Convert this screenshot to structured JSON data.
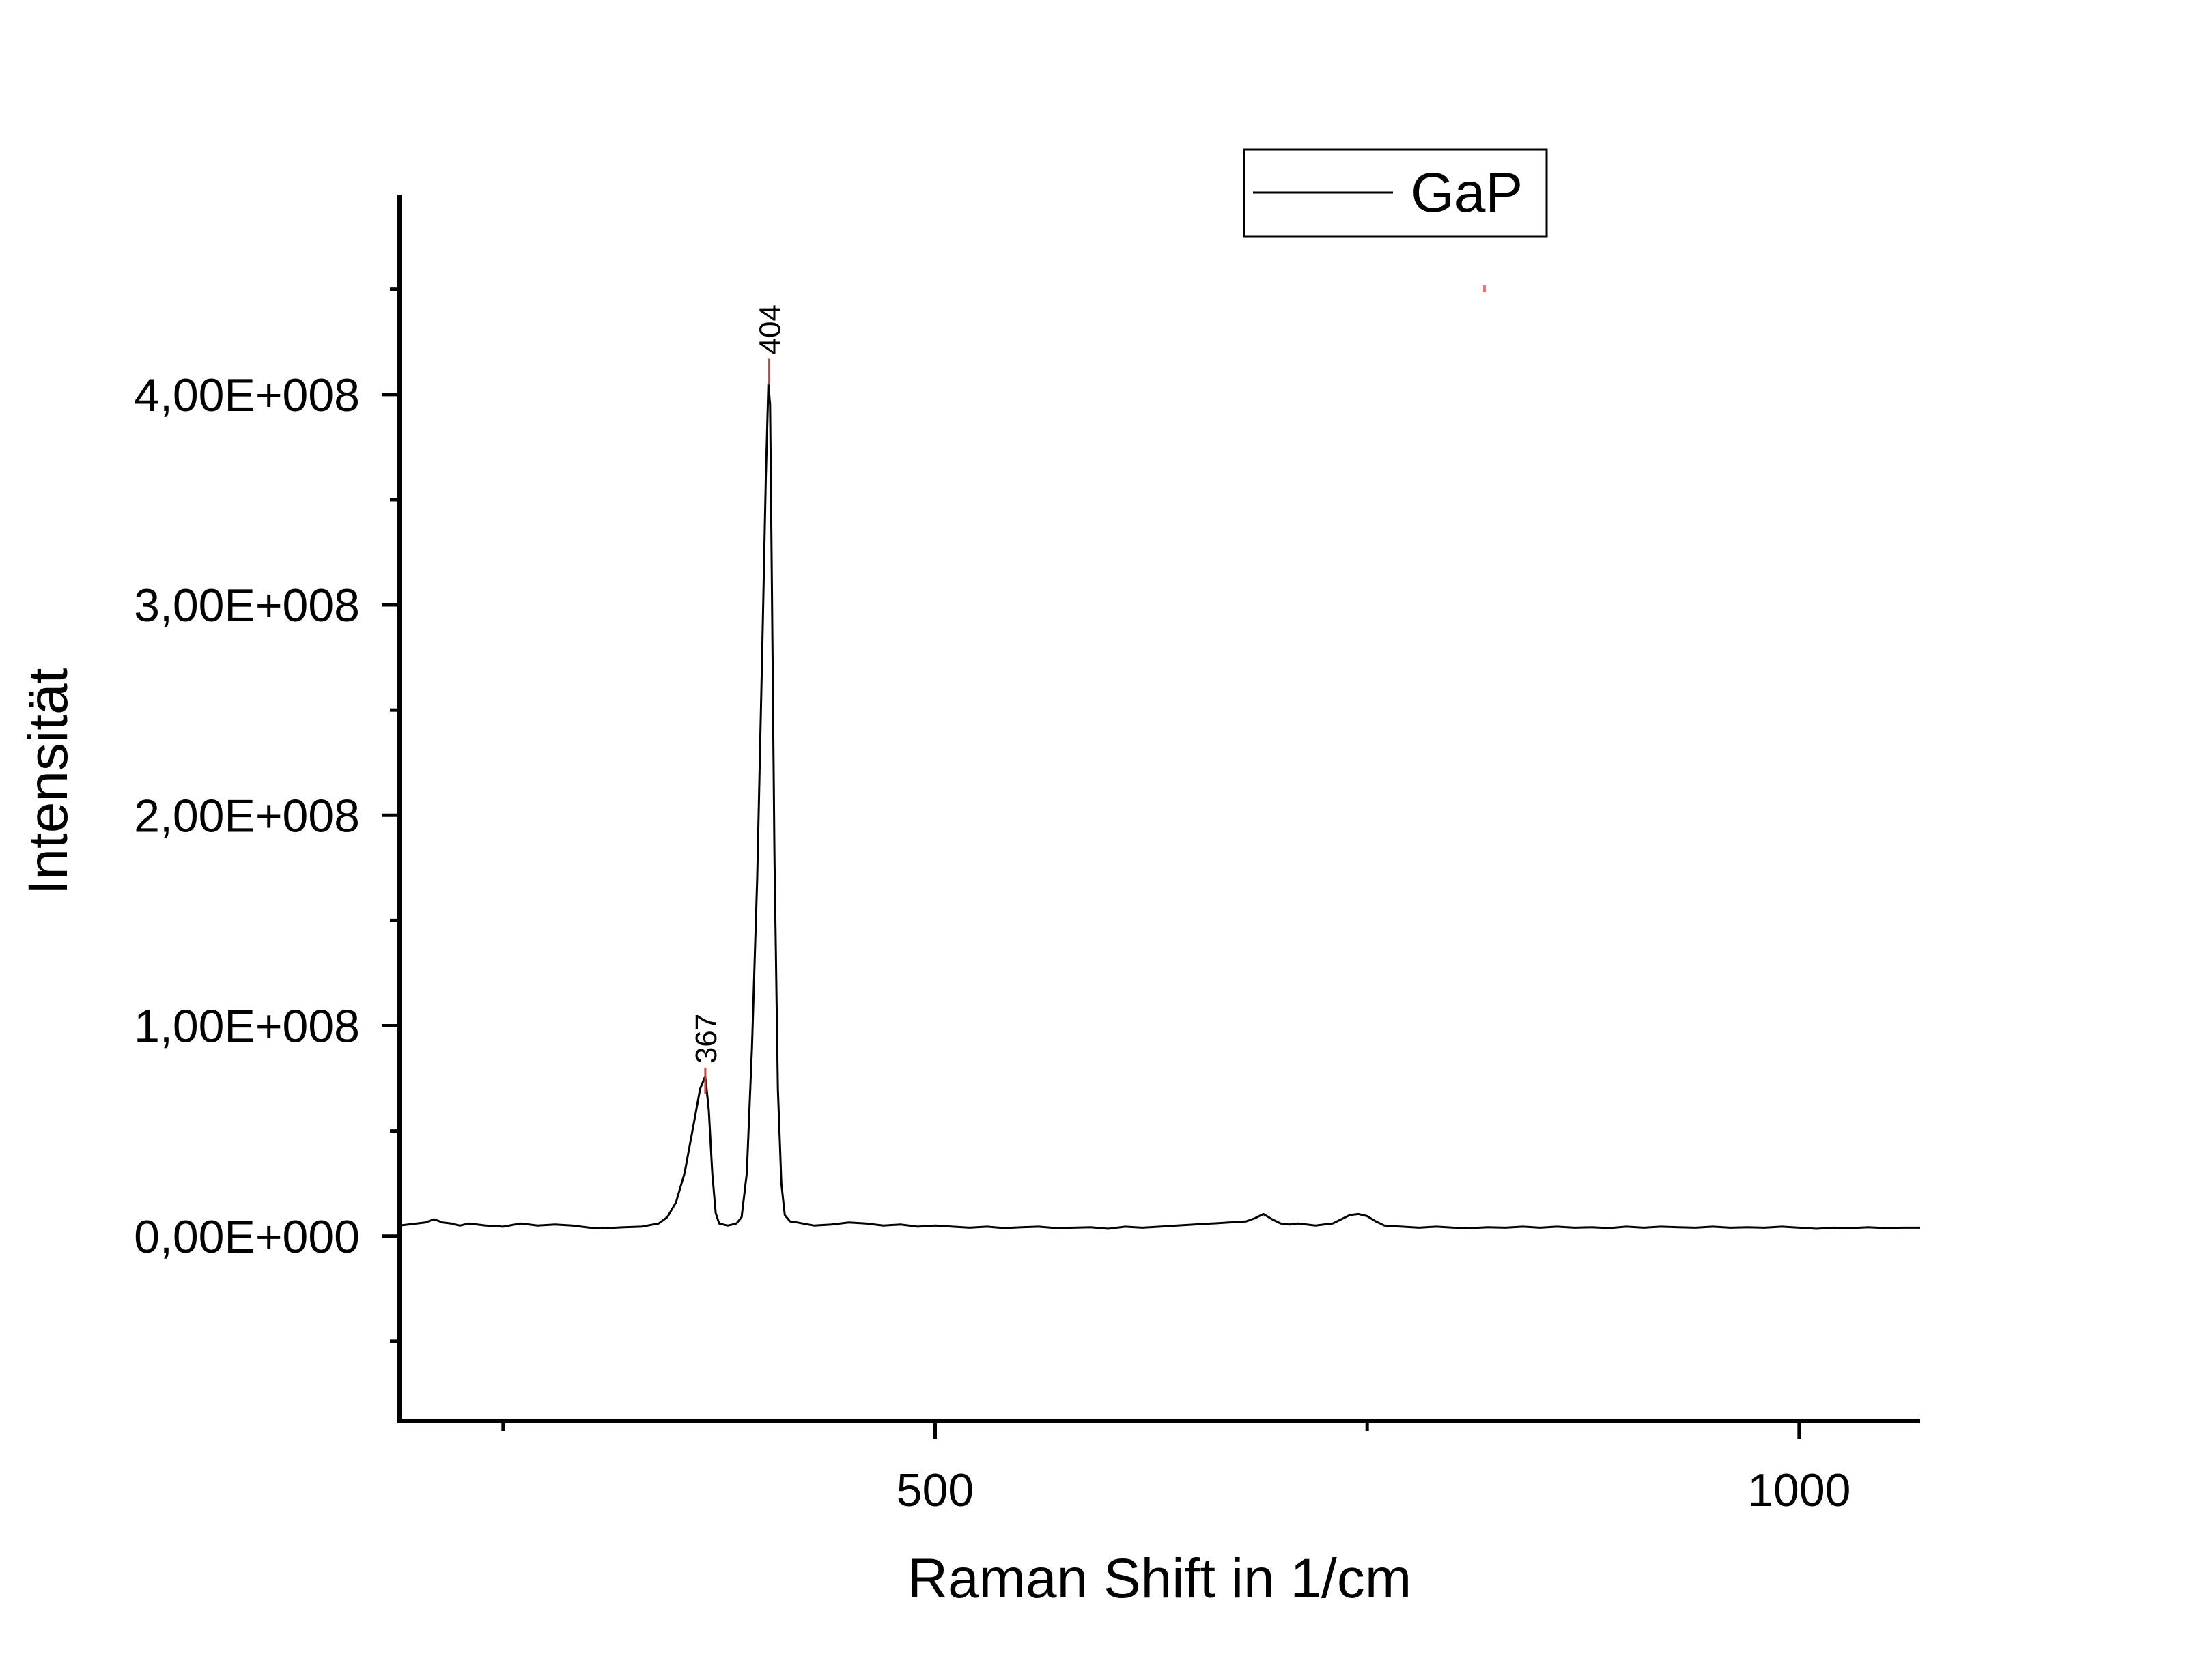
{
  "chart_data": {
    "type": "line",
    "xlabel": "Raman Shift in 1/cm",
    "ylabel": "Intensität",
    "xlim": [
      190,
      1070
    ],
    "ylim": [
      -88000000,
      495000000
    ],
    "x_ticks": [
      {
        "value": 500,
        "label": "500"
      },
      {
        "value": 1000,
        "label": "1000"
      }
    ],
    "x_minor_ticks": [
      250,
      750
    ],
    "y_ticks": [
      {
        "value": 0,
        "label": "0,00E+000"
      },
      {
        "value": 100000000,
        "label": "1,00E+008"
      },
      {
        "value": 200000000,
        "label": "2,00E+008"
      },
      {
        "value": 300000000,
        "label": "3,00E+008"
      },
      {
        "value": 400000000,
        "label": "4,00E+008"
      }
    ],
    "y_minor_ticks": [
      -50000000,
      50000000,
      150000000,
      250000000,
      350000000,
      450000000
    ],
    "legend": {
      "position": "top-center",
      "entries": [
        "GaP"
      ]
    },
    "annotations": [
      {
        "label": "367",
        "x": 367,
        "y": 80000000,
        "marker_color": "#e8332a"
      },
      {
        "label": "404",
        "x": 404,
        "y": 417000000,
        "marker_color": "#e8332a"
      }
    ],
    "series": [
      {
        "name": "GaP",
        "color": "#000000",
        "points": [
          [
            190,
            5000000
          ],
          [
            195,
            5500000
          ],
          [
            200,
            6000000
          ],
          [
            205,
            6500000
          ],
          [
            210,
            8000000
          ],
          [
            215,
            6500000
          ],
          [
            220,
            6000000
          ],
          [
            225,
            5000000
          ],
          [
            230,
            6000000
          ],
          [
            240,
            5000000
          ],
          [
            250,
            4500000
          ],
          [
            260,
            6000000
          ],
          [
            270,
            5000000
          ],
          [
            280,
            5500000
          ],
          [
            290,
            5000000
          ],
          [
            300,
            4000000
          ],
          [
            310,
            3800000
          ],
          [
            320,
            4200000
          ],
          [
            330,
            4500000
          ],
          [
            340,
            6000000
          ],
          [
            345,
            9000000
          ],
          [
            350,
            16000000
          ],
          [
            355,
            30000000
          ],
          [
            360,
            52000000
          ],
          [
            364,
            70000000
          ],
          [
            367,
            76000000
          ],
          [
            369,
            60000000
          ],
          [
            371,
            30000000
          ],
          [
            373,
            11000000
          ],
          [
            375,
            6000000
          ],
          [
            380,
            5000000
          ],
          [
            385,
            6000000
          ],
          [
            388,
            9000000
          ],
          [
            391,
            30000000
          ],
          [
            394,
            90000000
          ],
          [
            397,
            170000000
          ],
          [
            400,
            280000000
          ],
          [
            402,
            360000000
          ],
          [
            403.5,
            405000000
          ],
          [
            404.5,
            395000000
          ],
          [
            405.5,
            310000000
          ],
          [
            407,
            180000000
          ],
          [
            409,
            70000000
          ],
          [
            411,
            25000000
          ],
          [
            413,
            10000000
          ],
          [
            416,
            7000000
          ],
          [
            420,
            6500000
          ],
          [
            430,
            5000000
          ],
          [
            440,
            5500000
          ],
          [
            450,
            6500000
          ],
          [
            460,
            6000000
          ],
          [
            470,
            5000000
          ],
          [
            480,
            5500000
          ],
          [
            490,
            4500000
          ],
          [
            500,
            5000000
          ],
          [
            510,
            4500000
          ],
          [
            520,
            4000000
          ],
          [
            530,
            4500000
          ],
          [
            540,
            3800000
          ],
          [
            550,
            4200000
          ],
          [
            560,
            4500000
          ],
          [
            570,
            3800000
          ],
          [
            580,
            4000000
          ],
          [
            590,
            4200000
          ],
          [
            600,
            3500000
          ],
          [
            610,
            4500000
          ],
          [
            620,
            4000000
          ],
          [
            630,
            4500000
          ],
          [
            640,
            5000000
          ],
          [
            650,
            5500000
          ],
          [
            660,
            6000000
          ],
          [
            670,
            6500000
          ],
          [
            680,
            7000000
          ],
          [
            685,
            8500000
          ],
          [
            690,
            10500000
          ],
          [
            695,
            8000000
          ],
          [
            700,
            6000000
          ],
          [
            705,
            5500000
          ],
          [
            710,
            6000000
          ],
          [
            715,
            5500000
          ],
          [
            720,
            5000000
          ],
          [
            725,
            5500000
          ],
          [
            730,
            6000000
          ],
          [
            735,
            8000000
          ],
          [
            740,
            10000000
          ],
          [
            745,
            10500000
          ],
          [
            750,
            9500000
          ],
          [
            755,
            7000000
          ],
          [
            760,
            5000000
          ],
          [
            770,
            4500000
          ],
          [
            780,
            4000000
          ],
          [
            790,
            4500000
          ],
          [
            800,
            4000000
          ],
          [
            810,
            3800000
          ],
          [
            820,
            4200000
          ],
          [
            830,
            4000000
          ],
          [
            840,
            4500000
          ],
          [
            850,
            4000000
          ],
          [
            860,
            4500000
          ],
          [
            870,
            4000000
          ],
          [
            880,
            4200000
          ],
          [
            890,
            3800000
          ],
          [
            900,
            4500000
          ],
          [
            910,
            4000000
          ],
          [
            920,
            4500000
          ],
          [
            930,
            4200000
          ],
          [
            940,
            4000000
          ],
          [
            950,
            4500000
          ],
          [
            960,
            4000000
          ],
          [
            970,
            4200000
          ],
          [
            980,
            4000000
          ],
          [
            990,
            4500000
          ],
          [
            1000,
            4000000
          ],
          [
            1010,
            3500000
          ],
          [
            1020,
            4000000
          ],
          [
            1030,
            3800000
          ],
          [
            1040,
            4200000
          ],
          [
            1050,
            3800000
          ],
          [
            1060,
            4000000
          ],
          [
            1070,
            4000000
          ]
        ]
      }
    ]
  }
}
